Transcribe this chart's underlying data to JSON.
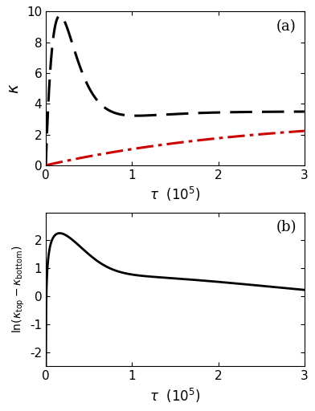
{
  "title_a": "(a)",
  "title_b": "(b)",
  "xlim": [
    0,
    300000.0
  ],
  "ylim_a": [
    0,
    10
  ],
  "ylim_b": [
    -2.5,
    3
  ],
  "xticks": [
    0,
    100000.0,
    200000.0,
    300000.0
  ],
  "xtick_labels": [
    "0",
    "1",
    "2",
    "3"
  ],
  "yticks_a": [
    0,
    2,
    4,
    6,
    8,
    10
  ],
  "yticks_b": [
    -2,
    -1,
    0,
    1,
    2
  ],
  "line_black_color": "#000000",
  "line_red_color": "#cc0000",
  "background_color": "#ffffff",
  "tau_scale": 100000.0,
  "black_peak_tau": 15000.0,
  "black_amplitude": 9.0,
  "black_asymptote": 3.5,
  "black_decay_tau": 50000.0,
  "red_asymptote": 3.2,
  "red_decay_tau": 250000.0,
  "ylim_b_bottom": -2.5
}
